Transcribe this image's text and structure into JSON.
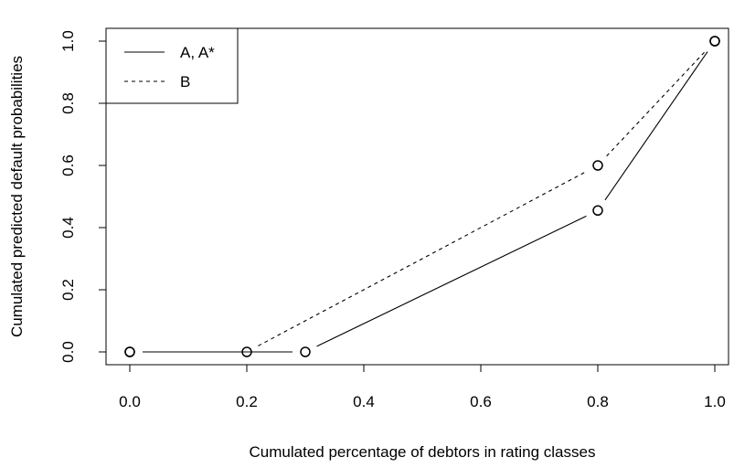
{
  "chart_data": {
    "type": "line",
    "title": "",
    "xlabel": "Cumulated percentage of debtors in rating classes",
    "ylabel": "Cumulated predicted default probabilities",
    "xlim": [
      0.0,
      1.0
    ],
    "ylim": [
      0.0,
      1.0
    ],
    "xticks": [
      "0.0",
      "0.2",
      "0.4",
      "0.6",
      "0.8",
      "1.0"
    ],
    "yticks": [
      "0.0",
      "0.2",
      "0.4",
      "0.6",
      "0.8",
      "1.0"
    ],
    "grid": false,
    "legend_position": "top-left",
    "series": [
      {
        "name": "A, A*",
        "line_style": "solid",
        "color": "#000000",
        "points": [
          {
            "x": 0.0,
            "y": 0.0
          },
          {
            "x": 0.3,
            "y": 0.0
          },
          {
            "x": 0.8,
            "y": 0.455
          },
          {
            "x": 1.0,
            "y": 1.0
          }
        ]
      },
      {
        "name": "B",
        "line_style": "dashed",
        "color": "#000000",
        "points": [
          {
            "x": 0.0,
            "y": 0.0
          },
          {
            "x": 0.2,
            "y": 0.0
          },
          {
            "x": 0.8,
            "y": 0.6
          },
          {
            "x": 1.0,
            "y": 1.0
          }
        ]
      }
    ]
  }
}
